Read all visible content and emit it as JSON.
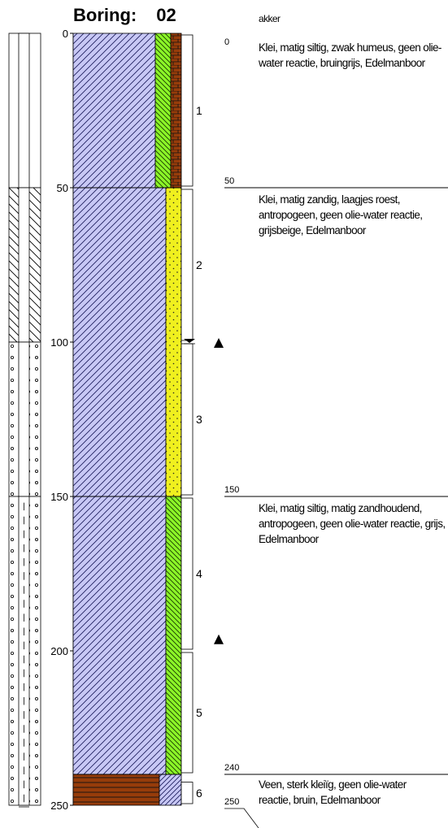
{
  "title": {
    "label": "Boring:",
    "number": "02"
  },
  "depth_scale": {
    "unit_top": 0,
    "unit_bottom": 250,
    "ticks": [
      {
        "depth": 0,
        "label": "0"
      },
      {
        "depth": 50,
        "label": "50"
      },
      {
        "depth": 100,
        "label": "100"
      },
      {
        "depth": 150,
        "label": "150"
      },
      {
        "depth": 200,
        "label": "200"
      },
      {
        "depth": 250,
        "label": "250"
      }
    ]
  },
  "pipe": [
    {
      "from": 0,
      "to": 50,
      "type": "blind"
    },
    {
      "from": 50,
      "to": 100,
      "type": "seal"
    },
    {
      "from": 100,
      "to": 150,
      "type": "gravel"
    },
    {
      "from": 150,
      "to": 250,
      "type": "filter"
    }
  ],
  "layers": [
    {
      "from": 0,
      "to": 50,
      "main": "clay",
      "pattern1": "silt-green",
      "pattern2": "humus-brown"
    },
    {
      "from": 50,
      "to": 150,
      "main": "clay",
      "pattern1": "sand-yellow",
      "pattern2": null
    },
    {
      "from": 150,
      "to": 240,
      "main": "clay",
      "pattern1": "silt-green",
      "pattern2": null
    },
    {
      "from": 240,
      "to": 250,
      "main": "peat",
      "pattern1": "clay-blue",
      "pattern2": null
    }
  ],
  "samples": [
    {
      "from": 0,
      "to": 50,
      "label": "1"
    },
    {
      "from": 50,
      "to": 100,
      "label": "2"
    },
    {
      "from": 100,
      "to": 150,
      "label": "3"
    },
    {
      "from": 150,
      "to": 200,
      "label": "4"
    },
    {
      "from": 200,
      "to": 240,
      "label": "5"
    },
    {
      "from": 242,
      "to": 250,
      "label": "6"
    }
  ],
  "water_level_depth": 100,
  "triangle_markers": [
    100,
    196
  ],
  "depth_marks": [
    {
      "depth": 0,
      "label": "0",
      "line": false
    },
    {
      "depth": 50,
      "label": "50",
      "line": true
    },
    {
      "depth": 150,
      "label": "150",
      "line": true
    },
    {
      "depth": 240,
      "label": "240",
      "line": true
    }
  ],
  "descriptions": [
    {
      "depth_label": "",
      "text": "akker",
      "top_depth": -1
    },
    {
      "text": "Klei, matig siltig, zwak humeus, geen olie-water reactie, bruingrijs, Edelmanboor",
      "top_depth": 5
    },
    {
      "text": "Klei, matig zandig, laagjes roest, antropogeen, geen olie-water reactie, grijsbeige, Edelmanboor",
      "top_depth": 55
    },
    {
      "text": "Klei, matig siltig, matig zandhoudend, antropogeen, geen olie-water reactie, grijs, Edelmanboor",
      "top_depth": 155
    },
    {
      "text": "Veen, sterk kleiïg, geen olie-water reactie, bruin, Edelmanboor",
      "top_depth": 244
    }
  ],
  "end_depth_label": "250",
  "colors": {
    "clay": "#c8c8f5",
    "sand": "#f0f01e",
    "silt": "#8cf528",
    "humus": "#963c0a",
    "peat": "#963c0a"
  }
}
